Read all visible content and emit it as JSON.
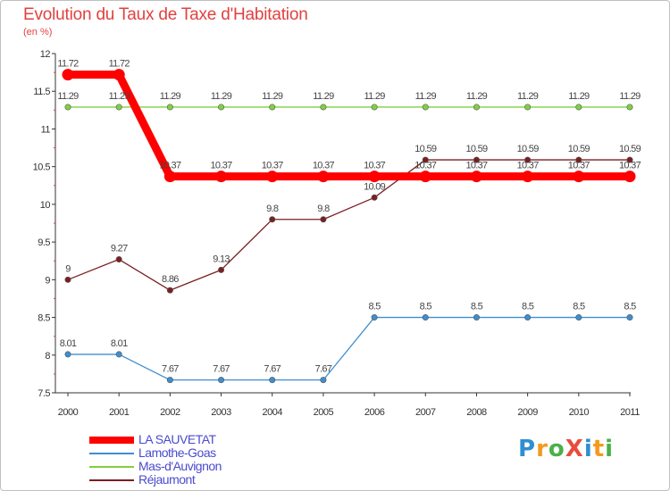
{
  "header": {
    "title": "Evolution du Taux de Taxe d'Habitation",
    "subtitle": "(en %)"
  },
  "logo": {
    "text": "ProXiti",
    "letters": [
      {
        "ch": "P",
        "color": "#2f8fd0"
      },
      {
        "ch": "r",
        "color": "#f39a1e"
      },
      {
        "ch": "o",
        "color": "#4bb048"
      },
      {
        "ch": "X",
        "color": "#e84c3d"
      },
      {
        "ch": "i",
        "color": "#2f8fd0"
      },
      {
        "ch": "t",
        "color": "#f39a1e"
      },
      {
        "ch": "i",
        "color": "#4bb048"
      }
    ]
  },
  "chart_data": {
    "type": "line",
    "title": "Evolution du Taux de Taxe d'Habitation",
    "subtitle": "(en %)",
    "xlabel": "",
    "ylabel": "",
    "ylim": [
      7.5,
      12
    ],
    "yticks": [
      "7.5",
      "8",
      "8.5",
      "9",
      "9.5",
      "10",
      "10.5",
      "11",
      "11.5",
      "12"
    ],
    "categories": [
      "2000",
      "2001",
      "2002",
      "2003",
      "2004",
      "2005",
      "2006",
      "2007",
      "2008",
      "2009",
      "2010",
      "2011"
    ],
    "grid": false,
    "legend_position": "bottom-left",
    "series": [
      {
        "name": "LA SAUVETAT",
        "color": "#ff0000",
        "values": [
          11.72,
          11.72,
          10.37,
          10.37,
          10.37,
          10.37,
          10.37,
          10.37,
          10.37,
          10.37,
          10.37,
          10.37
        ],
        "labels": [
          "11.72",
          "11.72",
          "10.37",
          "10.37",
          "10.37",
          "10.37",
          "10.37",
          "10.37",
          "10.37",
          "10.37",
          "10.37",
          "10.37"
        ]
      },
      {
        "name": "Lamothe-Goas",
        "color": "#3e8ed0",
        "values": [
          8.01,
          8.01,
          7.67,
          7.67,
          7.67,
          7.67,
          8.5,
          8.5,
          8.5,
          8.5,
          8.5,
          8.5
        ],
        "labels": [
          "8.01",
          "8.01",
          "7.67",
          "7.67",
          "7.67",
          "7.67",
          "8.5",
          "8.5",
          "8.5",
          "8.5",
          "8.5",
          "8.5"
        ]
      },
      {
        "name": "Mas-d'Auvignon",
        "color": "#7fd140",
        "values": [
          11.29,
          11.29,
          11.29,
          11.29,
          11.29,
          11.29,
          11.29,
          11.29,
          11.29,
          11.29,
          11.29,
          11.29
        ],
        "labels": [
          "11.29",
          "11.29",
          "11.29",
          "11.29",
          "11.29",
          "11.29",
          "11.29",
          "11.29",
          "11.29",
          "11.29",
          "11.29",
          "11.29"
        ]
      },
      {
        "name": "Réjaumont",
        "color": "#7a1f22",
        "values": [
          9,
          9.27,
          8.86,
          9.13,
          9.8,
          9.8,
          10.09,
          10.59,
          10.59,
          10.59,
          10.59,
          10.59
        ],
        "labels": [
          "9",
          "9.27",
          "8.86",
          "9.13",
          "9.8",
          "9.8",
          "10.09",
          "10.59",
          "10.59",
          "10.59",
          "10.59",
          "10.59"
        ]
      }
    ]
  }
}
